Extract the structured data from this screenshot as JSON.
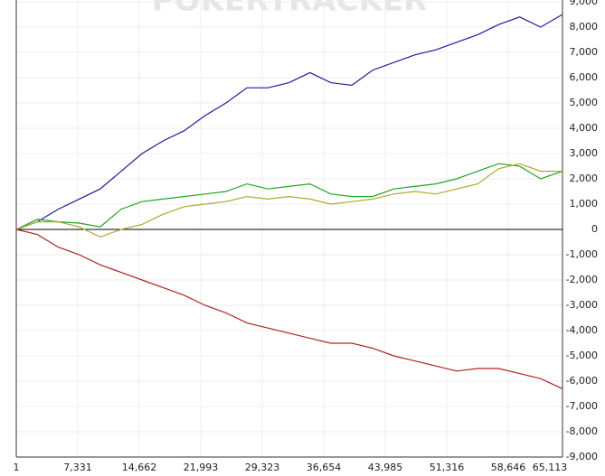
{
  "chart_data": {
    "type": "line",
    "watermark": "POKERTRACKER",
    "x": [
      1,
      2501,
      5001,
      7501,
      10001,
      12501,
      15001,
      17501,
      20001,
      22501,
      25001,
      27501,
      30001,
      32501,
      35001,
      37501,
      40001,
      42501,
      45001,
      47501,
      50001,
      52501,
      55001,
      57501,
      60001,
      62501,
      65113
    ],
    "series": [
      {
        "color": "#1c1c9c",
        "values": [
          0,
          300,
          800,
          1200,
          1600,
          2300,
          3000,
          3500,
          3900,
          4500,
          5000,
          5600,
          5600,
          5800,
          6200,
          5800,
          5700,
          6300,
          6600,
          6900,
          7100,
          7400,
          7700,
          8100,
          8400,
          8000,
          8500
        ]
      },
      {
        "color": "#22a522",
        "values": [
          0,
          400,
          300,
          250,
          100,
          800,
          1100,
          1200,
          1300,
          1400,
          1500,
          1800,
          1600,
          1700,
          1800,
          1400,
          1300,
          1300,
          1600,
          1700,
          1800,
          2000,
          2300,
          2600,
          2500,
          2000,
          2300
        ]
      },
      {
        "color": "#b0a82a",
        "values": [
          0,
          300,
          300,
          100,
          -300,
          0,
          200,
          600,
          900,
          1000,
          1100,
          1300,
          1200,
          1300,
          1200,
          1000,
          1100,
          1200,
          1400,
          1500,
          1400,
          1600,
          1800,
          2400,
          2600,
          2300,
          2300
        ]
      },
      {
        "color": "#b02222",
        "values": [
          0,
          -200,
          -700,
          -1000,
          -1400,
          -1700,
          -2000,
          -2300,
          -2600,
          -3000,
          -3300,
          -3700,
          -3900,
          -4100,
          -4300,
          -4500,
          -4500,
          -4700,
          -5000,
          -5200,
          -5400,
          -5600,
          -5500,
          -5500,
          -5700,
          -5900,
          -6300
        ]
      }
    ],
    "xlim": [
      1,
      65113
    ],
    "xticks": [
      1,
      {
        "value": 7331,
        "label": "7,331"
      },
      {
        "value": 14662,
        "label": "14,662"
      },
      {
        "value": 21993,
        "label": "21,993"
      },
      {
        "value": 29323,
        "label": "29,323"
      },
      {
        "value": 36654,
        "label": "36,654"
      },
      {
        "value": 43985,
        "label": "43,985"
      },
      {
        "value": 51316,
        "label": "51,316"
      },
      {
        "value": 58646,
        "label": "58,646"
      },
      {
        "value": 65113,
        "label": "65,113"
      }
    ],
    "ylim": [
      -9000,
      9000
    ],
    "yticks": [
      {
        "value": 9000,
        "label": "9,000"
      },
      {
        "value": 8000,
        "label": "8,000"
      },
      {
        "value": 7000,
        "label": "7,000"
      },
      {
        "value": 6000,
        "label": "6,000"
      },
      {
        "value": 5000,
        "label": "5,000"
      },
      {
        "value": 4000,
        "label": "4,000"
      },
      {
        "value": 3000,
        "label": "3,000"
      },
      {
        "value": 2000,
        "label": "2,000"
      },
      {
        "value": 1000,
        "label": "1,000"
      },
      0,
      {
        "value": -1000,
        "label": "-1,000"
      },
      {
        "value": -2000,
        "label": "-2,000"
      },
      {
        "value": -3000,
        "label": "-3,000"
      },
      {
        "value": -4000,
        "label": "-4,000"
      },
      {
        "value": -5000,
        "label": "-5,000"
      },
      {
        "value": -6000,
        "label": "-6,000"
      },
      {
        "value": -7000,
        "label": "-7,000"
      },
      {
        "value": -8000,
        "label": "-8,000"
      },
      {
        "value": -9000,
        "label": "-9,000"
      }
    ],
    "grid": true
  }
}
